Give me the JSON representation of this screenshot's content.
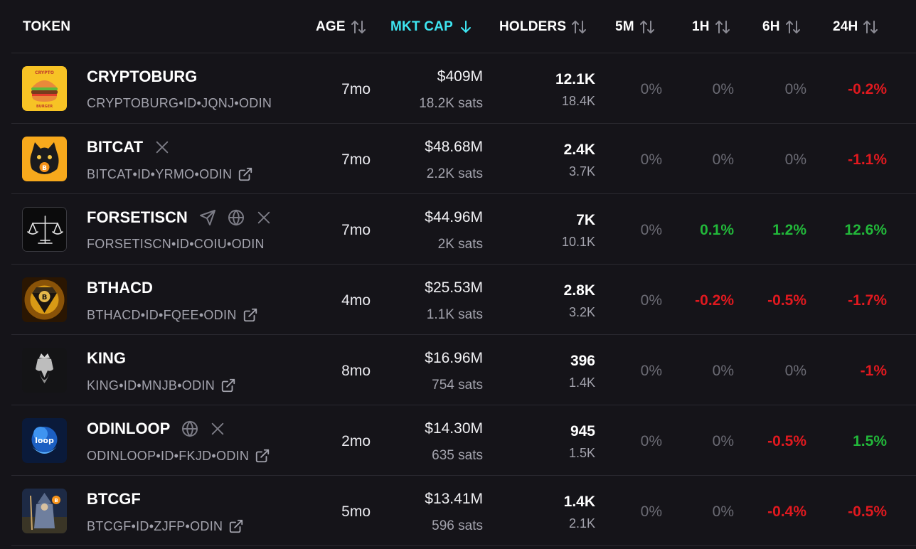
{
  "header": {
    "token": "TOKEN",
    "age": "AGE",
    "mkt_cap": "MKT CAP",
    "holders": "HOLDERS",
    "m5": "5M",
    "h1": "1H",
    "h6": "6H",
    "h24": "24H"
  },
  "colors": {
    "background": "#151419",
    "active_sort": "#3ee6f2",
    "negative": "#e0191f",
    "positive": "#22b83a",
    "neutral": "#6b6b74"
  },
  "rows": [
    {
      "name": "CRYPTOBURG",
      "ident": "CRYPTOBURG•ID•JQNJ•ODIN",
      "logo": "burger-logo",
      "logo_text_top": "CRYPTO",
      "logo_text_bottom": "BURGER",
      "age": "7mo",
      "mcap": "$409M",
      "sats": "18.2K sats",
      "holders": "12.1K",
      "holders2": "18.4K",
      "m5": "0%",
      "h1": "0%",
      "h6": "0%",
      "h24": "-0.2%"
    },
    {
      "name": "BITCAT",
      "ident": "BITCAT•ID•YRMO•ODIN",
      "logo": "cat-logo",
      "age": "7mo",
      "mcap": "$48.68M",
      "sats": "2.2K sats",
      "holders": "2.4K",
      "holders2": "3.7K",
      "m5": "0%",
      "h1": "0%",
      "h6": "0%",
      "h24": "-1.1%"
    },
    {
      "name": "FORSETISCN",
      "ident": "FORSETISCN•ID•COIU•ODIN",
      "logo": "scales-logo",
      "age": "7mo",
      "mcap": "$44.96M",
      "sats": "2K sats",
      "holders": "7K",
      "holders2": "10.1K",
      "m5": "0%",
      "h1": "0.1%",
      "h6": "1.2%",
      "h24": "12.6%"
    },
    {
      "name": "BTHACD",
      "ident": "BTHACD•ID•FQEE•ODIN",
      "logo": "diamond-logo",
      "age": "4mo",
      "mcap": "$25.53M",
      "sats": "1.1K sats",
      "holders": "2.8K",
      "holders2": "3.2K",
      "m5": "0%",
      "h1": "-0.2%",
      "h6": "-0.5%",
      "h24": "-1.7%"
    },
    {
      "name": "KING",
      "ident": "KING•ID•MNJB•ODIN",
      "logo": "king-logo",
      "age": "8mo",
      "mcap": "$16.96M",
      "sats": "754 sats",
      "holders": "396",
      "holders2": "1.4K",
      "m5": "0%",
      "h1": "0%",
      "h6": "0%",
      "h24": "-1%"
    },
    {
      "name": "ODINLOOP",
      "ident": "ODINLOOP•ID•FKJD•ODIN",
      "logo": "loop-logo",
      "logo_text": "loop",
      "age": "2mo",
      "mcap": "$14.30M",
      "sats": "635 sats",
      "holders": "945",
      "holders2": "1.5K",
      "m5": "0%",
      "h1": "0%",
      "h6": "-0.5%",
      "h24": "1.5%"
    },
    {
      "name": "BTCGF",
      "ident": "BTCGF•ID•ZJFP•ODIN",
      "logo": "wizard-logo",
      "age": "5mo",
      "mcap": "$13.41M",
      "sats": "596 sats",
      "holders": "1.4K",
      "holders2": "2.1K",
      "m5": "0%",
      "h1": "0%",
      "h6": "-0.4%",
      "h24": "-0.5%"
    }
  ]
}
